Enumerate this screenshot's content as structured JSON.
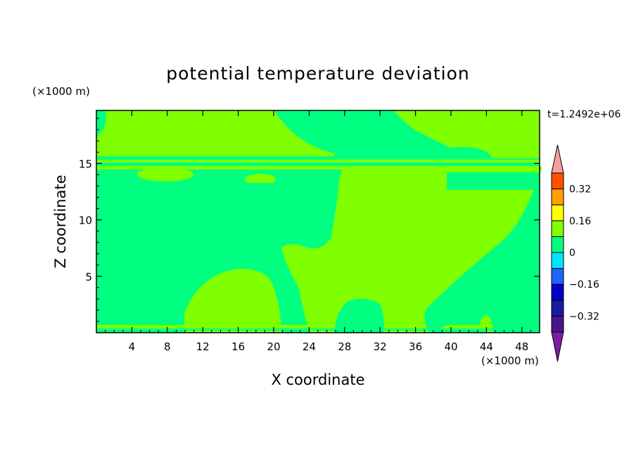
{
  "chart_data": {
    "type": "heatmap",
    "title": "potential temperature deviation",
    "xlabel": "X coordinate",
    "ylabel": "Z coordinate",
    "x_unit": "(×1000 m)",
    "z_unit": "(×1000 m)",
    "time_label": "t=1.2492e+06",
    "xlim": [
      0,
      50
    ],
    "zlim": [
      0,
      19.7
    ],
    "x_ticks": [
      4,
      8,
      12,
      16,
      20,
      24,
      28,
      32,
      36,
      40,
      44,
      48
    ],
    "z_ticks": [
      5,
      10,
      15
    ],
    "colorbar": {
      "levels": [
        -0.4,
        -0.32,
        -0.24,
        -0.16,
        -0.08,
        0,
        0.08,
        0.16,
        0.24,
        0.32,
        0.4
      ],
      "tick_labels": [
        "0.32",
        "0.16",
        "0",
        "−0.16",
        "−0.32"
      ],
      "tick_values": [
        0.32,
        0.16,
        0,
        -0.16,
        -0.32
      ],
      "colors": [
        "#4a148c",
        "#1a1aa0",
        "#0000c8",
        "#1e64ff",
        "#00e5ff",
        "#00ff80",
        "#80ff00",
        "#ffff00",
        "#ffa000",
        "#ff5000",
        "#ff2020"
      ],
      "under_color": "#7b1fa2",
      "over_color": "#f5a0a0"
    },
    "field_colors": {
      "background": "#00ff80",
      "positive": "#80ff00"
    }
  }
}
